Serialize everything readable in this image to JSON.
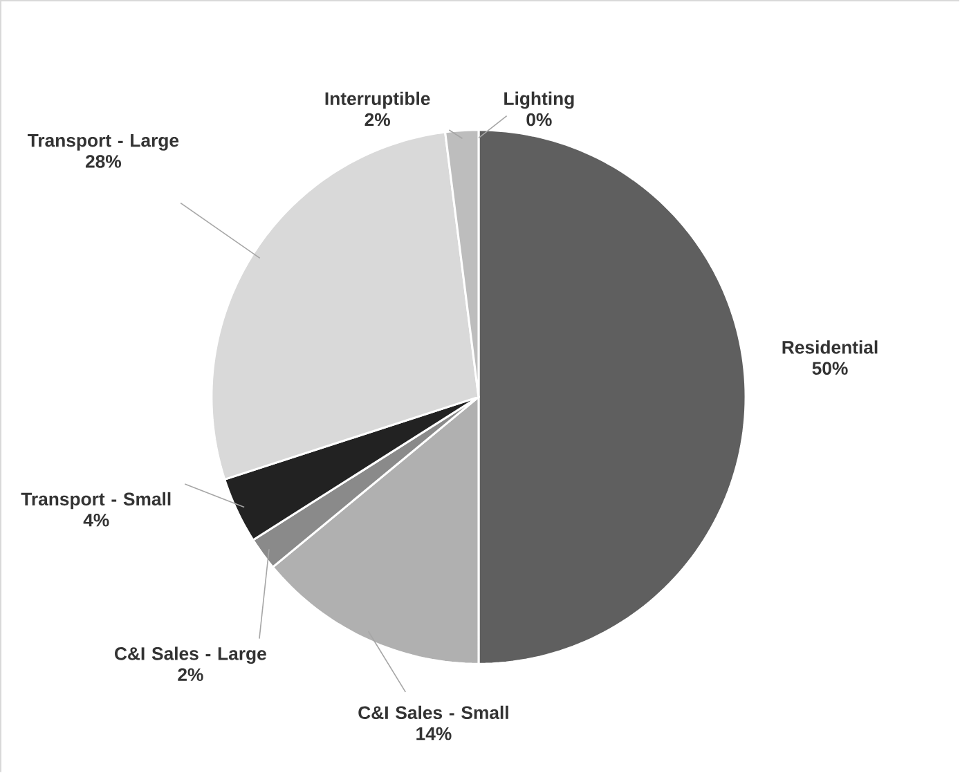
{
  "chart_data": {
    "type": "pie",
    "categories": [
      "Residential",
      "C&I Sales - Small",
      "C&I Sales - Large",
      "Transport - Small",
      "Transport - Large",
      "Interruptible",
      "Lighting"
    ],
    "values": [
      50,
      14,
      2,
      4,
      28,
      2,
      0
    ],
    "colors": [
      "#5f5f5f",
      "#b0b0b0",
      "#8a8a8a",
      "#222222",
      "#d9d9d9",
      "#bdbdbd",
      "#a0a0a0"
    ],
    "value_labels": [
      "50%",
      "14%",
      "2%",
      "4%",
      "28%",
      "2%",
      "0%"
    ]
  }
}
